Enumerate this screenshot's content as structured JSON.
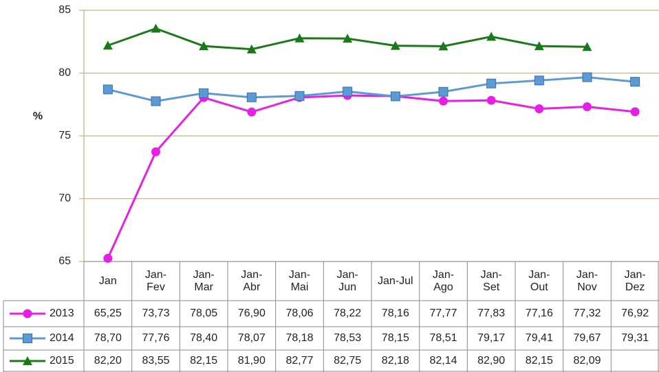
{
  "chart_data": {
    "type": "line",
    "y_label": "%",
    "categories": [
      "Jan",
      "Jan-Fev",
      "Jan-Mar",
      "Jan-Abr",
      "Jan-Mai",
      "Jan-Jun",
      "Jan-Jul",
      "Jan-Ago",
      "Jan-Set",
      "Jan-Out",
      "Jan-Nov",
      "Jan-Dez"
    ],
    "series": [
      {
        "name": "2013",
        "color": "#e61ee6",
        "marker": "circle",
        "values": [
          65.25,
          73.73,
          78.05,
          76.9,
          78.06,
          78.22,
          78.16,
          77.77,
          77.83,
          77.16,
          77.32,
          76.92
        ],
        "value_labels": [
          "65,25",
          "73,73",
          "78,05",
          "76,90",
          "78,06",
          "78,22",
          "78,16",
          "77,77",
          "77,83",
          "77,16",
          "77,32",
          "76,92"
        ]
      },
      {
        "name": "2014",
        "color": "#5b9bd5",
        "marker": "square",
        "values": [
          78.7,
          77.76,
          78.4,
          78.07,
          78.18,
          78.53,
          78.15,
          78.51,
          79.17,
          79.41,
          79.67,
          79.31
        ],
        "value_labels": [
          "78,70",
          "77,76",
          "78,40",
          "78,07",
          "78,18",
          "78,53",
          "78,15",
          "78,51",
          "79,17",
          "79,41",
          "79,67",
          "79,31"
        ]
      },
      {
        "name": "2015",
        "color": "#1a7a1a",
        "marker": "triangle",
        "values": [
          82.2,
          83.55,
          82.15,
          81.9,
          82.77,
          82.75,
          82.18,
          82.14,
          82.9,
          82.15,
          82.09,
          null
        ],
        "value_labels": [
          "82,20",
          "83,55",
          "82,15",
          "81,90",
          "82,77",
          "82,75",
          "82,18",
          "82,14",
          "82,90",
          "82,15",
          "82,09",
          null
        ]
      }
    ],
    "ylim": [
      65,
      85
    ],
    "yticks": [
      65,
      70,
      75,
      80,
      85
    ],
    "grid": true
  }
}
